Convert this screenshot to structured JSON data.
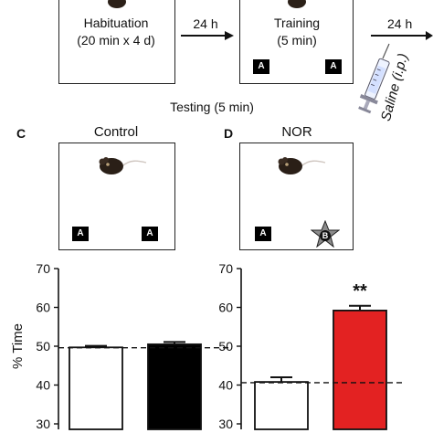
{
  "top": {
    "habituation_label": "Habituation",
    "habituation_detail": "(20 min x 4 d)",
    "training_label": "Training",
    "training_detail": "(5 min)",
    "interval_1": "24 h",
    "interval_2": "24 h",
    "injection_label": "Saline (i.p.)",
    "object_a": "A",
    "testing_label": "Testing (5 min)"
  },
  "panels": {
    "c": {
      "letter": "C",
      "title": "Control",
      "objects": [
        "A",
        "A"
      ]
    },
    "d": {
      "letter": "D",
      "title": "NOR",
      "objects": [
        "A",
        "B"
      ]
    }
  },
  "chart_data": [
    {
      "type": "bar",
      "ylabel": "% Time",
      "ylim": [
        30,
        70
      ],
      "yticks": [
        30,
        40,
        50,
        60,
        70
      ],
      "series": [
        {
          "values": [
            49.7,
            50.5
          ],
          "errors": [
            0.4,
            0.6
          ],
          "colors": [
            "#ffffff",
            "#000000"
          ]
        }
      ],
      "reference_line": 49.6
    },
    {
      "type": "bar",
      "ylim": [
        30,
        70
      ],
      "yticks": [
        30,
        40,
        50,
        60,
        70
      ],
      "series": [
        {
          "values": [
            40.8,
            59.2
          ],
          "errors": [
            1.2,
            1.2
          ],
          "colors": [
            "#ffffff",
            "#e32222"
          ]
        }
      ],
      "reference_line": 40.6,
      "significance": "**"
    }
  ]
}
